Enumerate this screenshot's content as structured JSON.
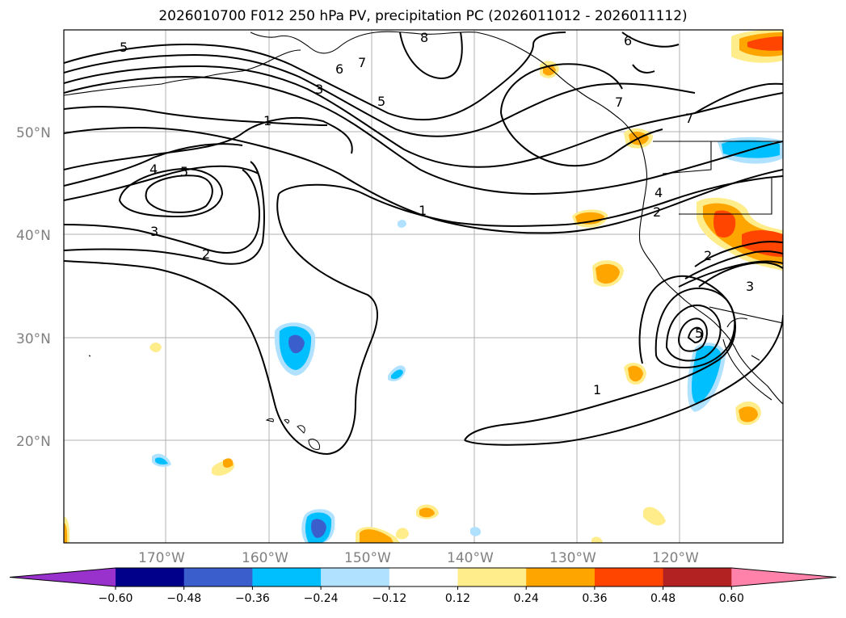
{
  "title": "2026010700 F012 250 hPa PV, precipitation PC (2026011012 - 2026011112)",
  "map": {
    "lat_labels": [
      "50°N",
      "40°N",
      "30°N",
      "20°N"
    ],
    "lon_labels": [
      "170°W",
      "160°W",
      "150°W",
      "140°W",
      "130°W",
      "120°W"
    ],
    "contour_labels": [
      "5",
      "8",
      "6",
      "7",
      "6",
      "3",
      "5",
      "1",
      "7",
      "4",
      "5",
      "3",
      "2",
      "1",
      "4",
      "2",
      "2",
      "3",
      "5",
      "1",
      "7"
    ]
  },
  "colorbar": {
    "colors": [
      "#9932cc",
      "#00008b",
      "#3a5fcd",
      "#00bfff",
      "#b0e2ff",
      "#ffffff",
      "#ffec8b",
      "#ffa500",
      "#ff4500",
      "#b22222",
      "#ff82ab"
    ],
    "ticks": [
      "−0.60",
      "−0.48",
      "−0.36",
      "−0.24",
      "−0.12",
      "0.12",
      "0.24",
      "0.36",
      "0.48",
      "0.60"
    ]
  }
}
